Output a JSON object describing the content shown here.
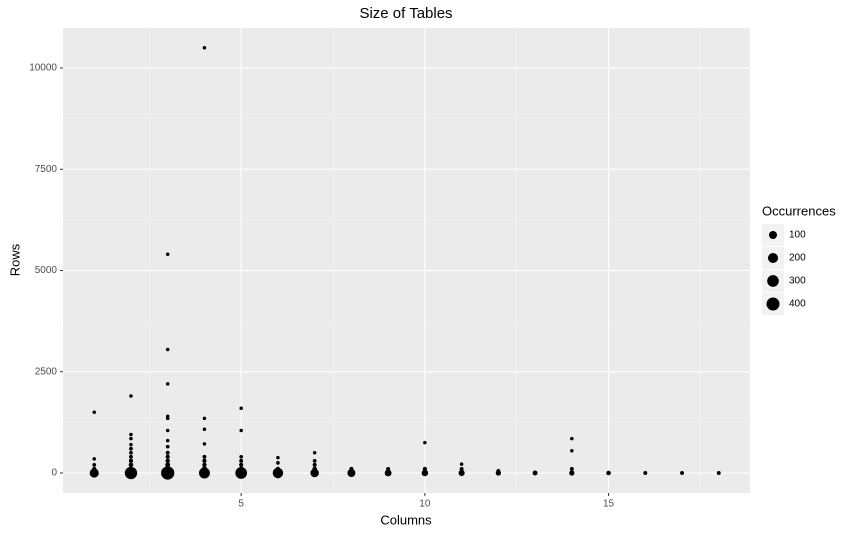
{
  "chart_data": {
    "type": "scatter",
    "title": "Size of Tables",
    "x_label": "Columns",
    "y_label": "Rows",
    "xlim": [
      0.15,
      18.85
    ],
    "ylim": [
      -494,
      10988
    ],
    "xticks": [
      5,
      10,
      15
    ],
    "yticks": [
      0,
      2500,
      5000,
      7500,
      10000
    ],
    "grid": true,
    "color": "#000000",
    "x": [
      1,
      1,
      1,
      1,
      1,
      2,
      2,
      2,
      2,
      2,
      2,
      2,
      2,
      2,
      2,
      2,
      3,
      3,
      3,
      3,
      3,
      3,
      3,
      3,
      3,
      3,
      3,
      3,
      3,
      3,
      4,
      4,
      4,
      4,
      4,
      4,
      4,
      4,
      4,
      5,
      5,
      5,
      5,
      5,
      5,
      5,
      6,
      6,
      6,
      6,
      7,
      7,
      7,
      7,
      7,
      8,
      8,
      9,
      9,
      10,
      10,
      10,
      11,
      11,
      11,
      12,
      12,
      13,
      14,
      14,
      14,
      14,
      15,
      16,
      17,
      18
    ],
    "y": [
      1500,
      350,
      200,
      100,
      0,
      1900,
      950,
      850,
      700,
      600,
      500,
      400,
      300,
      200,
      100,
      0,
      5400,
      3050,
      2200,
      1400,
      1350,
      1050,
      800,
      650,
      500,
      400,
      300,
      200,
      100,
      0,
      10500,
      1350,
      1080,
      720,
      400,
      300,
      200,
      100,
      0,
      1600,
      1050,
      400,
      300,
      200,
      100,
      0,
      380,
      250,
      100,
      0,
      500,
      300,
      200,
      100,
      0,
      100,
      0,
      100,
      0,
      750,
      100,
      0,
      220,
      100,
      0,
      50,
      0,
      0,
      850,
      550,
      100,
      0,
      0,
      0,
      0,
      0
    ],
    "size": [
      1,
      1,
      2,
      5,
      150,
      1,
      1,
      1,
      1,
      2,
      2,
      3,
      5,
      10,
      20,
      350,
      1,
      1,
      1,
      1,
      1,
      1,
      1,
      2,
      3,
      5,
      8,
      15,
      30,
      420,
      1,
      1,
      1,
      1,
      3,
      5,
      8,
      20,
      250,
      1,
      1,
      2,
      3,
      6,
      15,
      300,
      1,
      2,
      8,
      220,
      1,
      2,
      4,
      10,
      120,
      5,
      100,
      4,
      60,
      1,
      5,
      50,
      1,
      4,
      40,
      3,
      20,
      15,
      1,
      1,
      3,
      20,
      10,
      3,
      3,
      3
    ],
    "legend": {
      "title": "Occurrences",
      "values": [
        100,
        200,
        300,
        400
      ],
      "position": "right"
    }
  }
}
